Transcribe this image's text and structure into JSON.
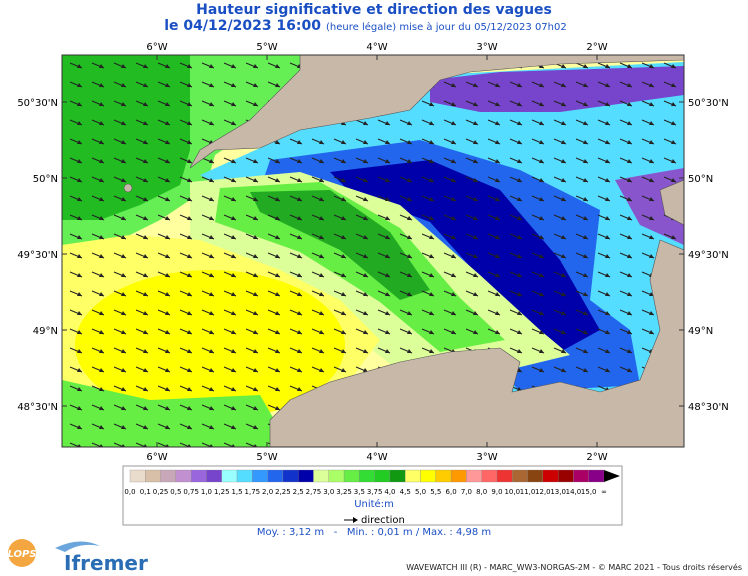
{
  "header": {
    "title": "Hauteur significative et direction des vagues",
    "date": "le 04/12/2023 16:00",
    "update": "(heure légale) mise à jour du 05/12/2023 07h02"
  },
  "map": {
    "lon_labels": [
      "6°W",
      "5°W",
      "4°W",
      "3°W",
      "2°W"
    ],
    "lat_labels": [
      "50°30'N",
      "50°N",
      "49°30'N",
      "49°N",
      "48°30'N"
    ]
  },
  "legend": {
    "labels": [
      "0,0",
      "0,1",
      "0,25",
      "0,5",
      "0,75",
      "1,0",
      "1,25",
      "1,5",
      "1,75",
      "2,0",
      "2,25",
      "2,5",
      "2,75",
      "3,0",
      "3,25",
      "3,5",
      "3,75",
      "4,0",
      "4,5",
      "5,0",
      "5,5",
      "6,0",
      "7,0",
      "8,0",
      "9,0",
      "10,0",
      "11,0",
      "12,0",
      "13,0",
      "14,0",
      "15,0",
      "∞"
    ],
    "colors": [
      "#eadccc",
      "#d8c0a8",
      "#c8a8b8",
      "#c090d0",
      "#9966dd",
      "#7744cc",
      "#99ffff",
      "#55ddff",
      "#3399ff",
      "#2266ee",
      "#1133cc",
      "#0000aa",
      "#ddff99",
      "#aaff66",
      "#66ee44",
      "#33dd33",
      "#22cc22",
      "#119911",
      "#ffff66",
      "#ffff00",
      "#ffcc00",
      "#ff9900",
      "#ff9999",
      "#ff6666",
      "#ee3333",
      "#aa6633",
      "#884411",
      "#cc0000",
      "#990000",
      "#aa0066",
      "#880088"
    ],
    "unit": "Unité:m",
    "direction": "direction",
    "stats": "Moy. : 3,12 m   -   Min. : 0,01 m / Max. : 4,98 m"
  },
  "footer": {
    "credit": "WAVEWATCH III (R) - MARC_WW3-NORGAS-2M - © MARC 2021 - Tous droits réservés",
    "logo_left": "LOPS",
    "logo_right": "Ifremer"
  }
}
